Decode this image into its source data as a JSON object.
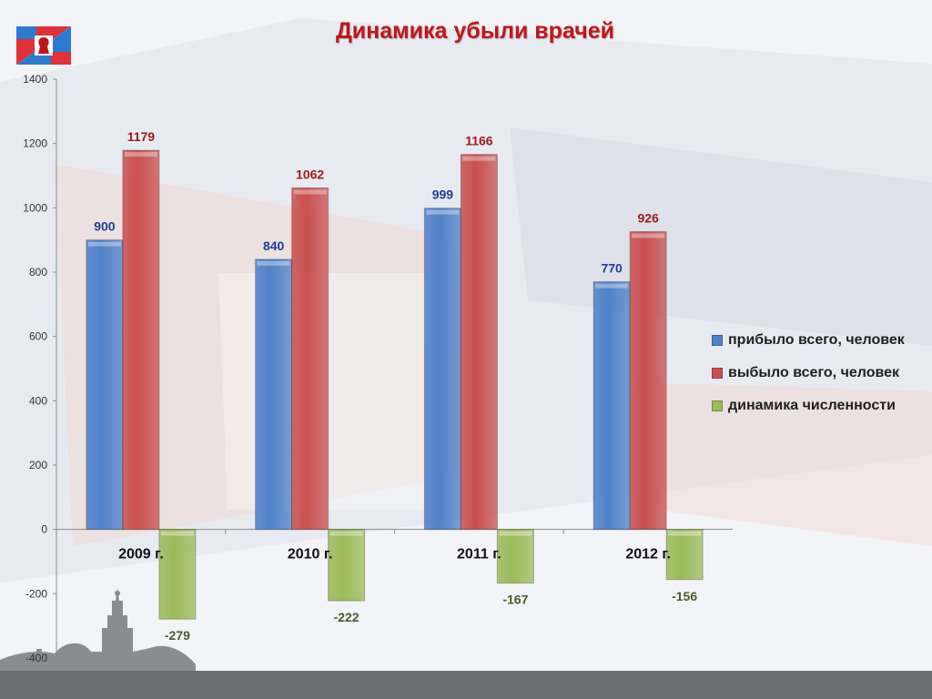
{
  "title": "Динамика убыли врачей",
  "colors": {
    "title": "#c0161b",
    "blue": "#4f81c9",
    "red": "#c9504f",
    "green": "#9bbb59"
  },
  "chart_data": {
    "type": "bar",
    "title": "Динамика убыли врачей",
    "categories": [
      "2009 г.",
      "2010 г.",
      "2011 г.",
      "2012 г."
    ],
    "series": [
      {
        "name": "прибыло всего, человек",
        "values": [
          900,
          840,
          999,
          770
        ],
        "color": "#4f81c9",
        "label_color": "#1f3c99"
      },
      {
        "name": "выбыло всего, человек",
        "values": [
          1179,
          1062,
          1166,
          926
        ],
        "color": "#c9504f",
        "label_color": "#9b1b1b"
      },
      {
        "name": "динамика численности",
        "values": [
          -279,
          -222,
          -167,
          -156
        ],
        "color": "#9bbb59",
        "label_color": "#4a5b2a"
      }
    ],
    "ylim": [
      -400,
      1400
    ],
    "yticks": [
      -400,
      -200,
      0,
      200,
      400,
      600,
      800,
      1000,
      1200,
      1400
    ],
    "grid": false,
    "legend": "right"
  }
}
